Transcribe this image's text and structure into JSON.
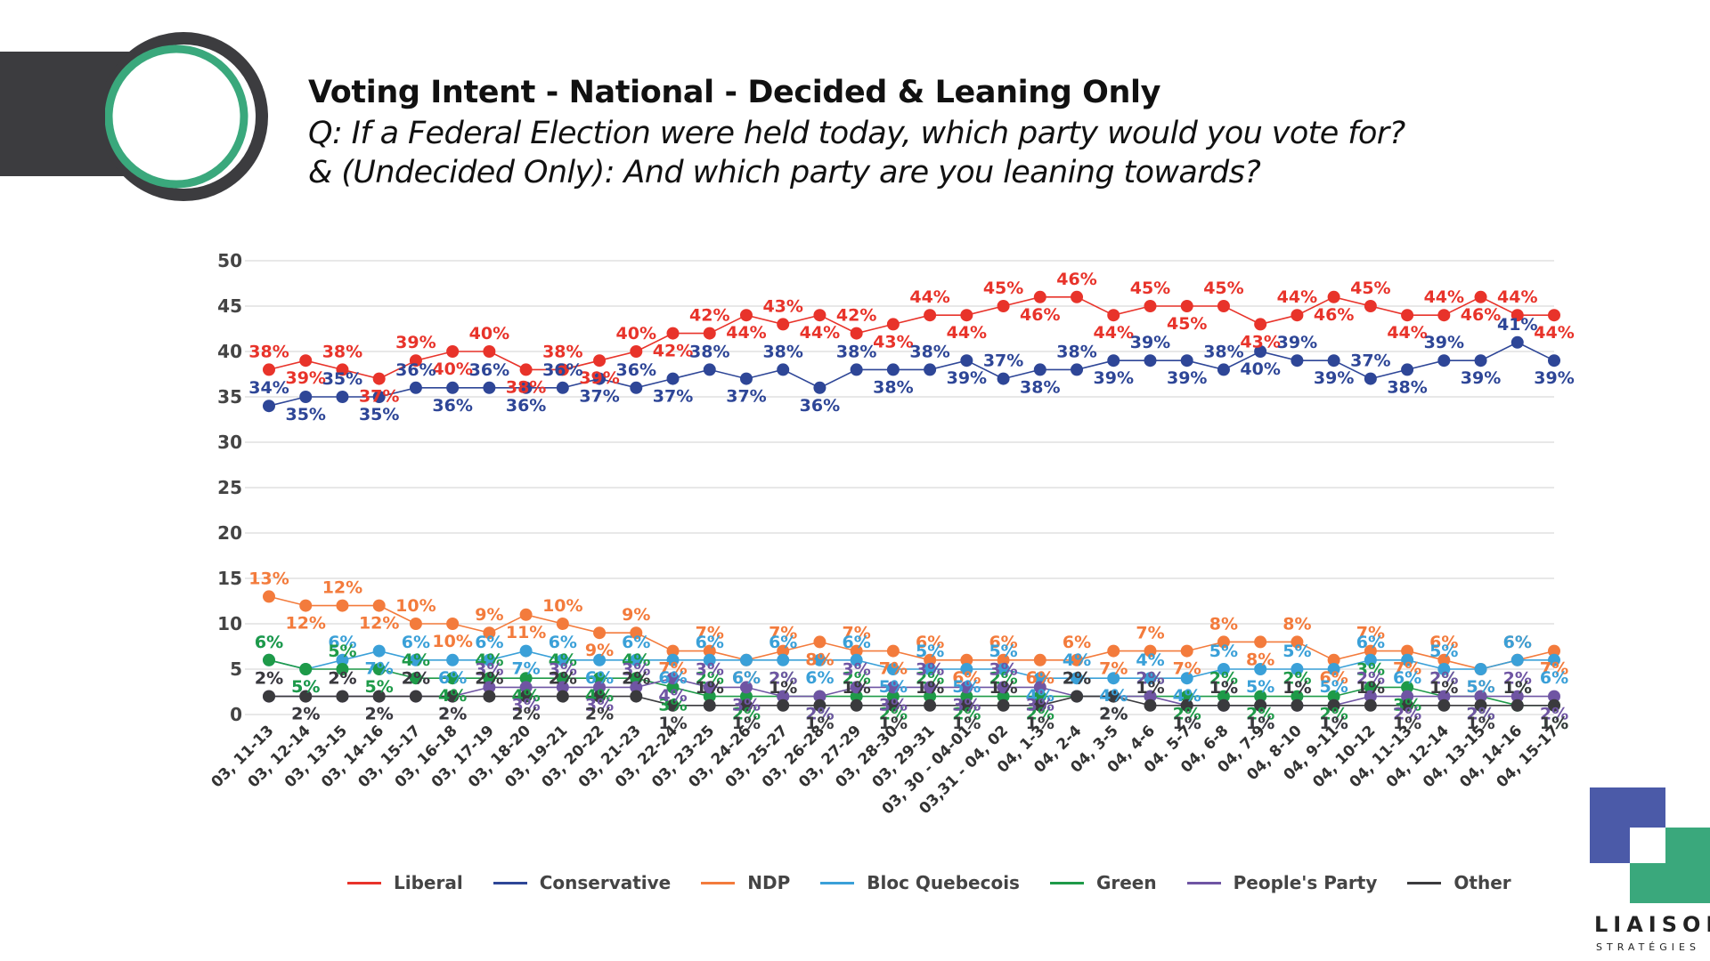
{
  "header": {
    "title": "Voting Intent - National - Decided & Leaning Only",
    "subtitle_line1": "Q: If a Federal Election were held today, which party would you vote for?",
    "subtitle_line2": "& (Undecided Only): And which party are you leaning towards?"
  },
  "brand": {
    "name": "LIAISON",
    "sub": "STRATÉGIES",
    "colors": {
      "blue": "#4b5aa8",
      "green": "#3aa87c",
      "dark": "#3c3c3f"
    }
  },
  "chart_data": {
    "type": "line",
    "title": "Voting Intent - National - Decided & Leaning Only",
    "xlabel": "",
    "ylabel": "",
    "ylim": [
      0,
      50
    ],
    "yticks": [
      0,
      5,
      10,
      15,
      20,
      25,
      30,
      35,
      40,
      45,
      50
    ],
    "grid": true,
    "legend_position": "bottom",
    "categories": [
      "03, 11-13",
      "03, 12-14",
      "03, 13-15",
      "03, 14-16",
      "03, 15-17",
      "03, 16-18",
      "03, 17-19",
      "03, 18-20",
      "03, 19-21",
      "03, 20-22",
      "03, 21-23",
      "03, 22-24",
      "03, 23-25",
      "03, 24-26",
      "03, 25-27",
      "03, 26-28",
      "03, 27-29",
      "03, 28-30",
      "03, 29-31",
      "03, 30 - 04-01",
      "03,31 - 04, 02",
      "04, 1-3",
      "04, 2-4",
      "04, 3-5",
      "04, 4-6",
      "04. 5-7",
      "04, 6-8",
      "04, 7-9",
      "04, 8-10",
      "04, 9-11",
      "04, 10-12",
      "04, 11-13",
      "04, 12-14",
      "04, 13-15",
      "04, 14-16",
      "04, 15-17"
    ],
    "series": [
      {
        "name": "Liberal",
        "color": "#e8332a",
        "values": [
          38,
          39,
          38,
          37,
          39,
          40,
          40,
          38,
          38,
          39,
          40,
          42,
          42,
          44,
          43,
          44,
          42,
          43,
          44,
          44,
          45,
          46,
          46,
          44,
          45,
          45,
          45,
          43,
          44,
          46,
          45,
          44,
          44,
          46,
          44,
          44
        ]
      },
      {
        "name": "Conservative",
        "color": "#2e4697",
        "values": [
          34,
          35,
          35,
          35,
          36,
          36,
          36,
          36,
          36,
          37,
          36,
          37,
          38,
          37,
          38,
          36,
          38,
          38,
          38,
          39,
          37,
          38,
          38,
          39,
          39,
          39,
          38,
          40,
          39,
          39,
          37,
          38,
          39,
          39,
          41,
          39
        ]
      },
      {
        "name": "NDP",
        "color": "#f37b3c",
        "values": [
          13,
          12,
          12,
          12,
          10,
          10,
          9,
          11,
          10,
          9,
          9,
          7,
          7,
          6,
          7,
          8,
          7,
          7,
          6,
          6,
          6,
          6,
          6,
          7,
          7,
          7,
          8,
          8,
          8,
          6,
          7,
          7,
          6,
          5,
          6,
          7
        ]
      },
      {
        "name": "Bloc Quebecois",
        "color": "#3aa0d8",
        "values": [
          6,
          5,
          6,
          7,
          6,
          6,
          6,
          7,
          6,
          6,
          6,
          6,
          6,
          6,
          6,
          6,
          6,
          5,
          5,
          5,
          5,
          4,
          4,
          4,
          4,
          4,
          5,
          5,
          5,
          5,
          6,
          6,
          5,
          5,
          6,
          6
        ]
      },
      {
        "name": "Green",
        "color": "#1e9a48",
        "values": [
          6,
          5,
          5,
          5,
          4,
          4,
          4,
          4,
          4,
          4,
          4,
          3,
          2,
          2,
          2,
          2,
          2,
          2,
          2,
          2,
          2,
          2,
          2,
          2,
          2,
          2,
          2,
          2,
          2,
          2,
          3,
          3,
          2,
          2,
          1,
          1
        ]
      },
      {
        "name": "People's Party",
        "color": "#6f55a3",
        "values": [
          2,
          2,
          2,
          2,
          2,
          2,
          3,
          3,
          3,
          3,
          3,
          4,
          3,
          3,
          2,
          2,
          3,
          3,
          3,
          3,
          3,
          3,
          2,
          2,
          2,
          1,
          1,
          1,
          1,
          1,
          2,
          2,
          2,
          2,
          2,
          2
        ]
      },
      {
        "name": "Other",
        "color": "#3a3a3d",
        "values": [
          2,
          2,
          2,
          2,
          2,
          2,
          2,
          2,
          2,
          2,
          2,
          1,
          1,
          1,
          1,
          1,
          1,
          1,
          1,
          1,
          1,
          1,
          2,
          2,
          1,
          1,
          1,
          1,
          1,
          1,
          1,
          1,
          1,
          1,
          1,
          1
        ]
      }
    ]
  }
}
